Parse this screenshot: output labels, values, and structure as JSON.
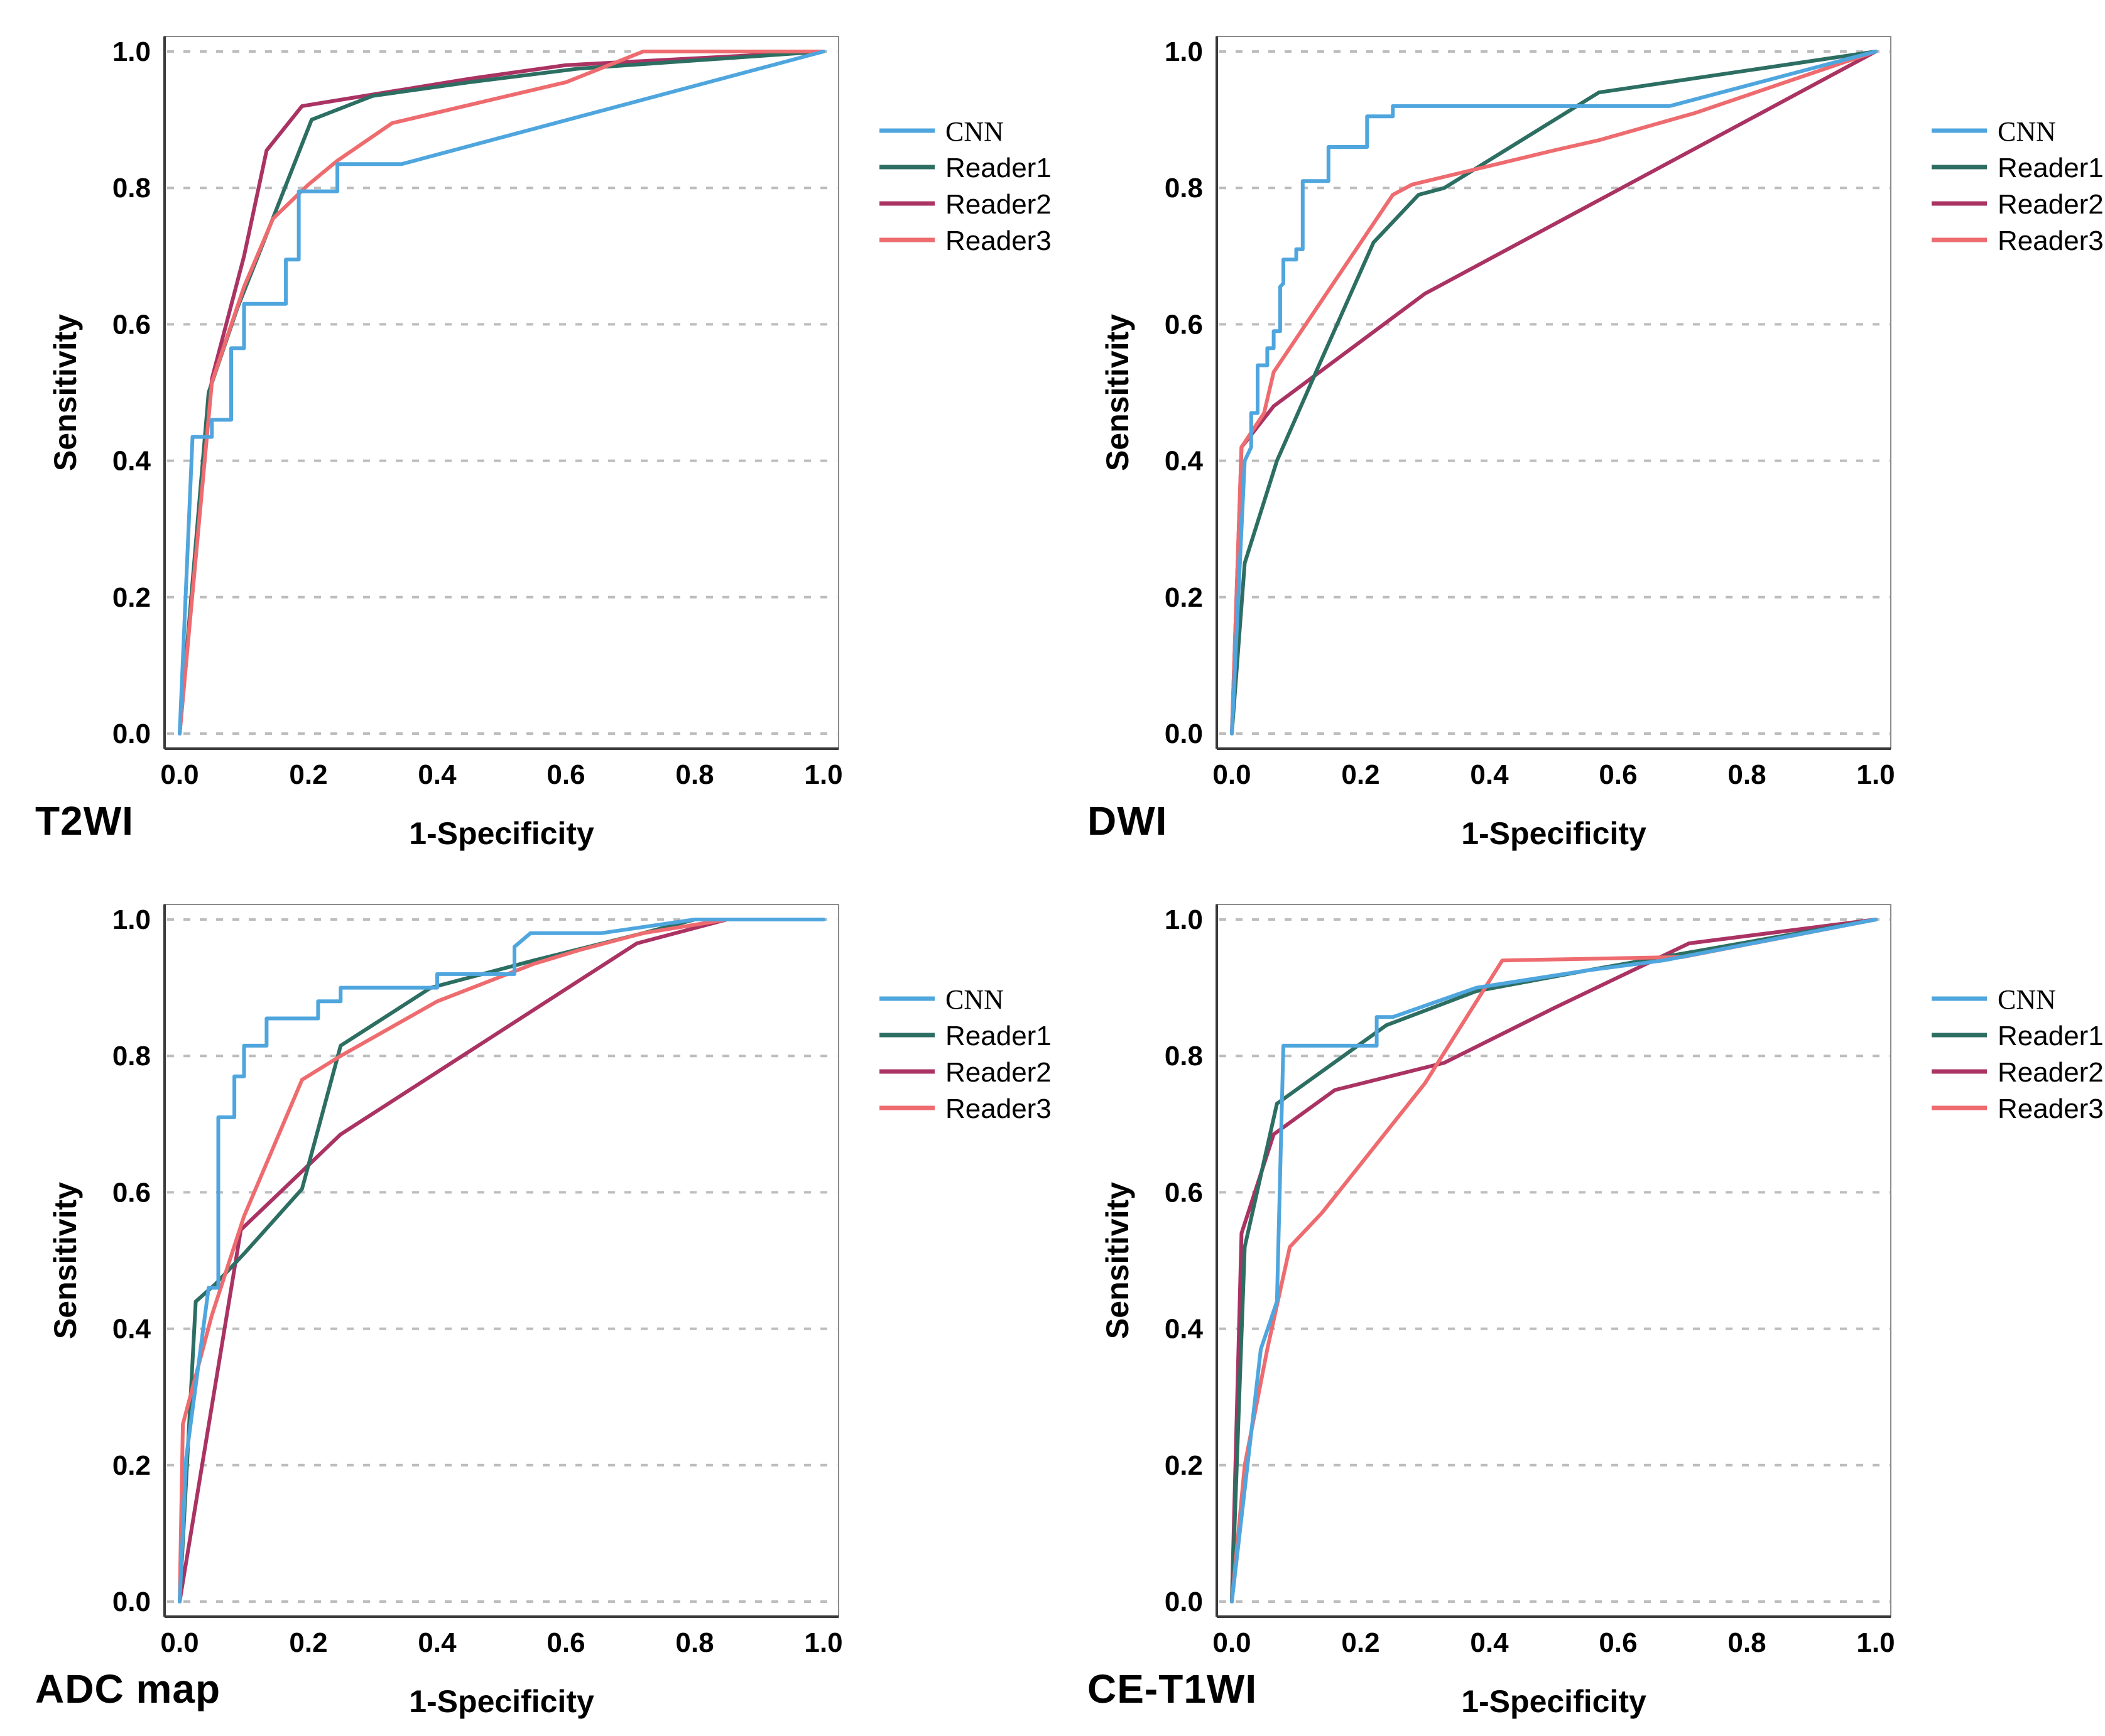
{
  "page": {
    "background": "#ffffff"
  },
  "colors": {
    "cnn": "#4FA6DE",
    "reader1": "#2D6E62",
    "reader2": "#AA3363",
    "reader3": "#EE6B6F",
    "grid": "#BDBDBD",
    "axis": "#3A3A3A",
    "frame": "#8C8C8C",
    "text": "#000000"
  },
  "legend": {
    "items": [
      {
        "label": "CNN",
        "series": "cnn"
      },
      {
        "label": "Reader1",
        "series": "reader1"
      },
      {
        "label": "Reader2",
        "series": "reader2"
      },
      {
        "label": "Reader3",
        "series": "reader3"
      }
    ],
    "position": "right"
  },
  "axes": {
    "x_label": "1-Specificity",
    "y_label": "Sensitivity",
    "x_ticks": [
      "0.0",
      "0.2",
      "0.4",
      "0.6",
      "0.8",
      "1.0"
    ],
    "y_ticks": [
      "0.0",
      "0.2",
      "0.4",
      "0.6",
      "0.8",
      "1.0"
    ],
    "tick_values": [
      0,
      0.2,
      0.4,
      0.6,
      0.8,
      1.0
    ]
  },
  "chart_data": [
    {
      "type": "line",
      "id": "t2wi",
      "title": "T2WI",
      "xlabel": "1-Specificity",
      "ylabel": "Sensitivity",
      "xlim": [
        0,
        1
      ],
      "ylim": [
        0,
        1
      ],
      "grid": "horizontal-dashed",
      "legend_position": "right",
      "series": [
        {
          "name": "CNN",
          "color": "cnn",
          "points": [
            [
              0,
              0
            ],
            [
              0.02,
              0.435
            ],
            [
              0.05,
              0.435
            ],
            [
              0.05,
              0.46
            ],
            [
              0.08,
              0.46
            ],
            [
              0.08,
              0.565
            ],
            [
              0.1,
              0.565
            ],
            [
              0.1,
              0.63
            ],
            [
              0.165,
              0.63
            ],
            [
              0.165,
              0.695
            ],
            [
              0.185,
              0.695
            ],
            [
              0.185,
              0.795
            ],
            [
              0.245,
              0.795
            ],
            [
              0.245,
              0.835
            ],
            [
              0.345,
              0.835
            ],
            [
              1,
              1
            ]
          ]
        },
        {
          "name": "Reader1",
          "color": "reader1",
          "points": [
            [
              0,
              0
            ],
            [
              0.045,
              0.5
            ],
            [
              0.09,
              0.625
            ],
            [
              0.13,
              0.72
            ],
            [
              0.205,
              0.9
            ],
            [
              0.3,
              0.935
            ],
            [
              0.45,
              0.955
            ],
            [
              0.62,
              0.975
            ],
            [
              1,
              1
            ]
          ]
        },
        {
          "name": "Reader2",
          "color": "reader2",
          "points": [
            [
              0,
              0
            ],
            [
              0.05,
              0.52
            ],
            [
              0.1,
              0.7
            ],
            [
              0.135,
              0.855
            ],
            [
              0.19,
              0.92
            ],
            [
              0.45,
              0.96
            ],
            [
              0.6,
              0.98
            ],
            [
              1,
              1
            ]
          ]
        },
        {
          "name": "Reader3",
          "color": "reader3",
          "points": [
            [
              0,
              0
            ],
            [
              0.05,
              0.515
            ],
            [
              0.1,
              0.655
            ],
            [
              0.145,
              0.755
            ],
            [
              0.2,
              0.805
            ],
            [
              0.245,
              0.84
            ],
            [
              0.33,
              0.895
            ],
            [
              0.6,
              0.955
            ],
            [
              0.72,
              1.0
            ],
            [
              1,
              1
            ]
          ]
        }
      ]
    },
    {
      "type": "line",
      "id": "dwi",
      "title": "DWI",
      "xlabel": "1-Specificity",
      "ylabel": "Sensitivity",
      "xlim": [
        0,
        1
      ],
      "ylim": [
        0,
        1
      ],
      "grid": "horizontal-dashed",
      "legend_position": "right",
      "series": [
        {
          "name": "CNN",
          "color": "cnn",
          "points": [
            [
              0,
              0
            ],
            [
              0.02,
              0.4
            ],
            [
              0.03,
              0.42
            ],
            [
              0.03,
              0.47
            ],
            [
              0.04,
              0.47
            ],
            [
              0.04,
              0.54
            ],
            [
              0.055,
              0.54
            ],
            [
              0.055,
              0.565
            ],
            [
              0.065,
              0.565
            ],
            [
              0.065,
              0.59
            ],
            [
              0.075,
              0.59
            ],
            [
              0.075,
              0.655
            ],
            [
              0.08,
              0.66
            ],
            [
              0.08,
              0.695
            ],
            [
              0.1,
              0.695
            ],
            [
              0.1,
              0.71
            ],
            [
              0.11,
              0.71
            ],
            [
              0.11,
              0.81
            ],
            [
              0.15,
              0.81
            ],
            [
              0.15,
              0.86
            ],
            [
              0.21,
              0.86
            ],
            [
              0.21,
              0.905
            ],
            [
              0.25,
              0.905
            ],
            [
              0.25,
              0.92
            ],
            [
              0.68,
              0.92
            ],
            [
              1,
              1
            ]
          ]
        },
        {
          "name": "Reader1",
          "color": "reader1",
          "points": [
            [
              0,
              0
            ],
            [
              0.02,
              0.25
            ],
            [
              0.07,
              0.4
            ],
            [
              0.14,
              0.55
            ],
            [
              0.22,
              0.72
            ],
            [
              0.29,
              0.79
            ],
            [
              0.33,
              0.8
            ],
            [
              0.57,
              0.94
            ],
            [
              1,
              1
            ]
          ]
        },
        {
          "name": "Reader2",
          "color": "reader2",
          "points": [
            [
              0,
              0
            ],
            [
              0.015,
              0.42
            ],
            [
              0.065,
              0.48
            ],
            [
              0.3,
              0.645
            ],
            [
              1,
              1
            ]
          ]
        },
        {
          "name": "Reader3",
          "color": "reader3",
          "points": [
            [
              0,
              0
            ],
            [
              0.015,
              0.42
            ],
            [
              0.05,
              0.47
            ],
            [
              0.065,
              0.53
            ],
            [
              0.25,
              0.79
            ],
            [
              0.28,
              0.805
            ],
            [
              0.5,
              0.855
            ],
            [
              0.57,
              0.87
            ],
            [
              0.72,
              0.91
            ],
            [
              1,
              1
            ]
          ]
        }
      ]
    },
    {
      "type": "line",
      "id": "adc_map",
      "title": "ADC map",
      "xlabel": "1-Specificity",
      "ylabel": "Sensitivity",
      "xlim": [
        0,
        1
      ],
      "ylim": [
        0,
        1
      ],
      "grid": "horizontal-dashed",
      "legend_position": "right",
      "series": [
        {
          "name": "CNN",
          "color": "cnn",
          "points": [
            [
              0,
              0
            ],
            [
              0.01,
              0.21
            ],
            [
              0.045,
              0.46
            ],
            [
              0.06,
              0.46
            ],
            [
              0.06,
              0.71
            ],
            [
              0.085,
              0.71
            ],
            [
              0.085,
              0.77
            ],
            [
              0.1,
              0.77
            ],
            [
              0.1,
              0.815
            ],
            [
              0.135,
              0.815
            ],
            [
              0.135,
              0.855
            ],
            [
              0.215,
              0.855
            ],
            [
              0.215,
              0.88
            ],
            [
              0.25,
              0.88
            ],
            [
              0.25,
              0.9
            ],
            [
              0.4,
              0.9
            ],
            [
              0.4,
              0.92
            ],
            [
              0.52,
              0.92
            ],
            [
              0.52,
              0.96
            ],
            [
              0.545,
              0.98
            ],
            [
              0.655,
              0.98
            ],
            [
              0.8,
              1.0
            ],
            [
              1,
              1
            ]
          ]
        },
        {
          "name": "Reader1",
          "color": "reader1",
          "points": [
            [
              0,
              0
            ],
            [
              0.025,
              0.44
            ],
            [
              0.055,
              0.465
            ],
            [
              0.1,
              0.51
            ],
            [
              0.19,
              0.605
            ],
            [
              0.25,
              0.815
            ],
            [
              0.39,
              0.9
            ],
            [
              0.55,
              0.94
            ],
            [
              0.72,
              0.98
            ],
            [
              0.8,
              1.0
            ],
            [
              1,
              1
            ]
          ]
        },
        {
          "name": "Reader2",
          "color": "reader2",
          "points": [
            [
              0,
              0
            ],
            [
              0.095,
              0.545
            ],
            [
              0.25,
              0.685
            ],
            [
              0.71,
              0.965
            ],
            [
              0.85,
              1.0
            ],
            [
              1,
              1
            ]
          ]
        },
        {
          "name": "Reader3",
          "color": "reader3",
          "points": [
            [
              0,
              0
            ],
            [
              0.005,
              0.26
            ],
            [
              0.05,
              0.42
            ],
            [
              0.1,
              0.565
            ],
            [
              0.19,
              0.765
            ],
            [
              0.25,
              0.8
            ],
            [
              0.4,
              0.88
            ],
            [
              0.55,
              0.935
            ],
            [
              0.62,
              0.955
            ],
            [
              0.72,
              0.98
            ],
            [
              0.85,
              1.0
            ],
            [
              1,
              1
            ]
          ]
        }
      ]
    },
    {
      "type": "line",
      "id": "ce_t1wi",
      "title": "CE-T1WI",
      "xlabel": "1-Specificity",
      "ylabel": "Sensitivity",
      "xlim": [
        0,
        1
      ],
      "ylim": [
        0,
        1
      ],
      "grid": "horizontal-dashed",
      "legend_position": "right",
      "series": [
        {
          "name": "CNN",
          "color": "cnn",
          "points": [
            [
              0,
              0
            ],
            [
              0.045,
              0.37
            ],
            [
              0.07,
              0.44
            ],
            [
              0.08,
              0.815
            ],
            [
              0.225,
              0.815
            ],
            [
              0.225,
              0.857
            ],
            [
              0.25,
              0.857
            ],
            [
              0.38,
              0.9
            ],
            [
              0.55,
              0.925
            ],
            [
              0.67,
              0.94
            ],
            [
              1,
              1
            ]
          ]
        },
        {
          "name": "Reader1",
          "color": "reader1",
          "points": [
            [
              0,
              0
            ],
            [
              0.02,
              0.52
            ],
            [
              0.07,
              0.73
            ],
            [
              0.24,
              0.845
            ],
            [
              0.38,
              0.895
            ],
            [
              0.55,
              0.925
            ],
            [
              0.67,
              0.945
            ],
            [
              0.73,
              0.955
            ],
            [
              1,
              1
            ]
          ]
        },
        {
          "name": "Reader2",
          "color": "reader2",
          "points": [
            [
              0,
              0
            ],
            [
              0.015,
              0.54
            ],
            [
              0.065,
              0.685
            ],
            [
              0.16,
              0.75
            ],
            [
              0.33,
              0.79
            ],
            [
              0.5,
              0.87
            ],
            [
              0.71,
              0.965
            ],
            [
              1,
              1
            ]
          ]
        },
        {
          "name": "Reader3",
          "color": "reader3",
          "points": [
            [
              0,
              0
            ],
            [
              0.02,
              0.2
            ],
            [
              0.055,
              0.37
            ],
            [
              0.09,
              0.52
            ],
            [
              0.14,
              0.57
            ],
            [
              0.3,
              0.76
            ],
            [
              0.42,
              0.94
            ],
            [
              0.7,
              0.945
            ],
            [
              1,
              1
            ]
          ]
        }
      ]
    }
  ]
}
